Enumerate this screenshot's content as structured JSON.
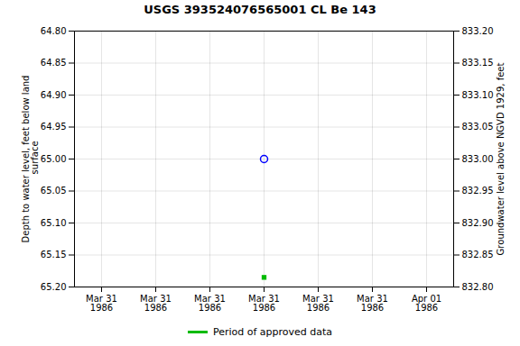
{
  "chart_data": {
    "type": "scatter",
    "title": "USGS 393524076565001 CL Be 143",
    "y_label": "Depth to water level, feet below land\n surface",
    "y2_label": "Groundwater level above NGVD 1929, feet",
    "categories": [
      "Mar 31\n1986",
      "Mar 31\n1986",
      "Mar 31\n1986",
      "Mar 31\n1986",
      "Mar 31\n1986",
      "Mar 31\n1986",
      "Apr 01\n1986"
    ],
    "series": [
      {
        "color": "blue",
        "marker": "circle",
        "values": [
          null,
          null,
          null,
          65.0,
          null,
          null,
          null
        ]
      },
      {
        "name": "Period of approved data",
        "color": "#00bb00",
        "marker": "square",
        "values": [
          null,
          null,
          null,
          65.185,
          null,
          null,
          null
        ]
      }
    ],
    "ylim": [
      65.2,
      64.8
    ],
    "yticks": [
      {
        "value": 64.8,
        "label": "64.80"
      },
      {
        "value": 64.85,
        "label": "64.85"
      },
      {
        "value": 64.9,
        "label": "64.90"
      },
      {
        "value": 64.95,
        "label": "64.95"
      },
      {
        "value": 65.0,
        "label": "65.00"
      },
      {
        "value": 65.05,
        "label": "65.05"
      },
      {
        "value": 65.1,
        "label": "65.10"
      },
      {
        "value": 65.15,
        "label": "65.15"
      },
      {
        "value": 65.2,
        "label": "65.20"
      }
    ],
    "y2lim": [
      832.8,
      833.2
    ],
    "y2ticks": [
      {
        "value": 833.2,
        "label": "833.20"
      },
      {
        "value": 833.15,
        "label": "833.15"
      },
      {
        "value": 833.1,
        "label": "833.10"
      },
      {
        "value": 833.05,
        "label": "833.05"
      },
      {
        "value": 833.0,
        "label": "833.00"
      },
      {
        "value": 832.95,
        "label": "832.95"
      },
      {
        "value": 832.9,
        "label": "832.90"
      },
      {
        "value": 832.85,
        "label": "832.85"
      },
      {
        "value": 832.8,
        "label": "832.80"
      }
    ],
    "grid": true,
    "legend": "bottom"
  }
}
